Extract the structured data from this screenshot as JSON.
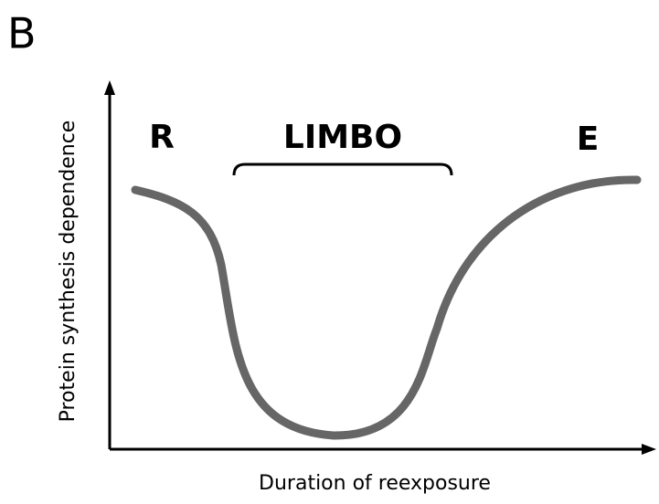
{
  "panel_label": "B",
  "axes": {
    "x_label": "Duration of reexposure",
    "y_label": "Protein synthesis dependence"
  },
  "regions": {
    "left": "R",
    "middle": "LIMBO",
    "right": "E"
  }
}
